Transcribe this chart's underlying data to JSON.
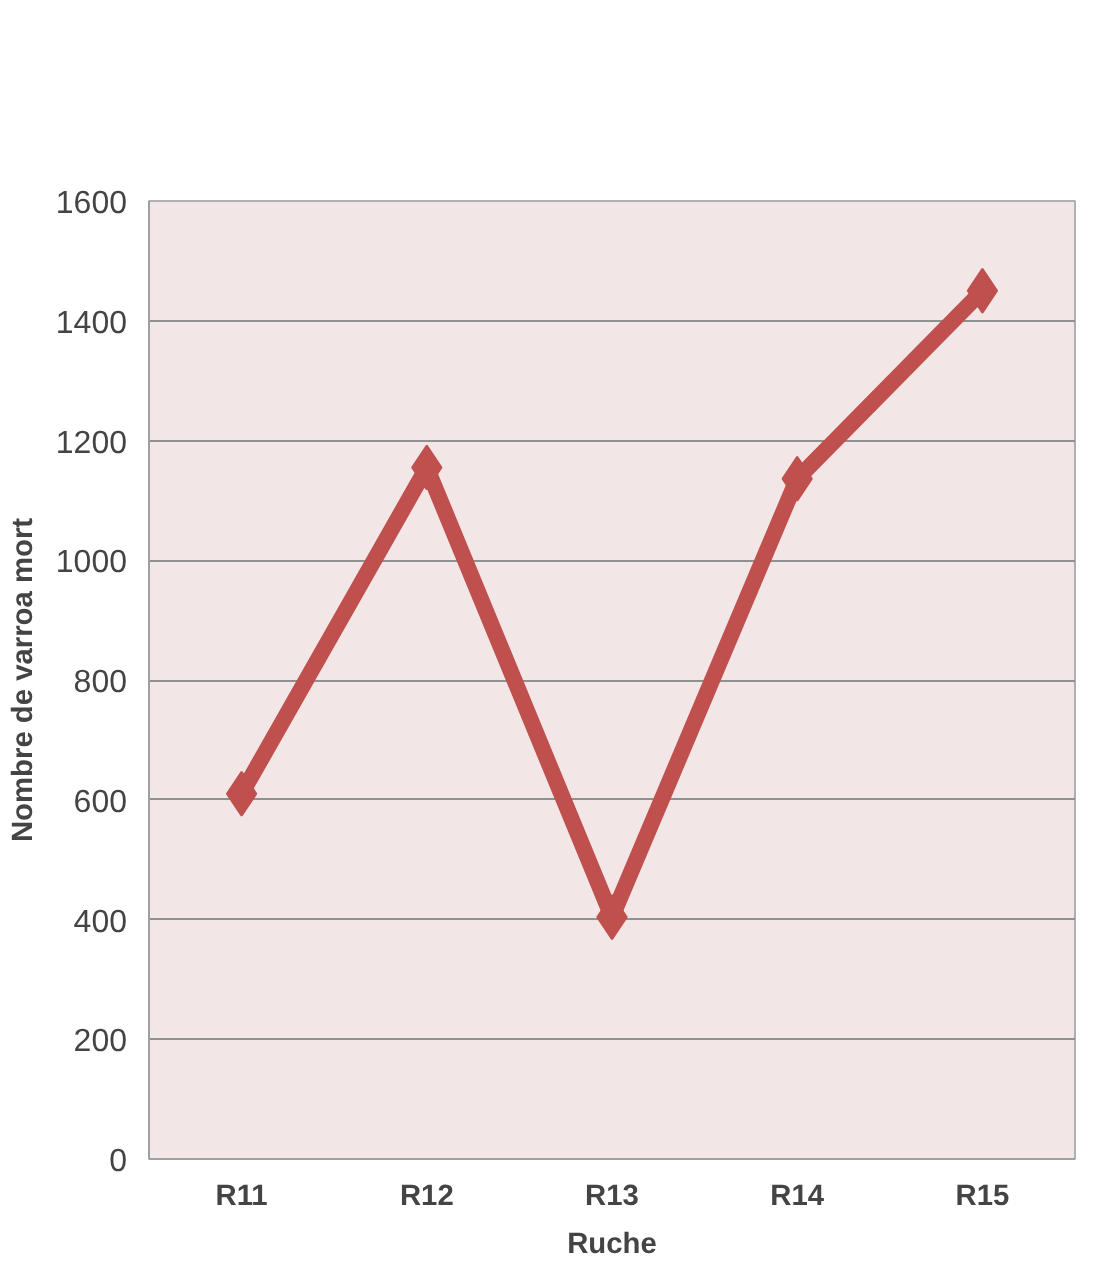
{
  "chart_data": {
    "type": "line",
    "categories": [
      "R11",
      "R12",
      "R13",
      "R14",
      "R15"
    ],
    "series": [
      {
        "color": "#c0504d",
        "values": [
          610,
          1155,
          404,
          1136,
          1450
        ]
      }
    ],
    "xlabel": "Ruche",
    "ylabel": "Nombre de varroa mort",
    "ylim": [
      0,
      1600
    ],
    "yticks": [
      0,
      200,
      400,
      600,
      800,
      1000,
      1200,
      1400,
      1600
    ],
    "grid": "y",
    "marker": "diamond",
    "line_style": "solid"
  }
}
